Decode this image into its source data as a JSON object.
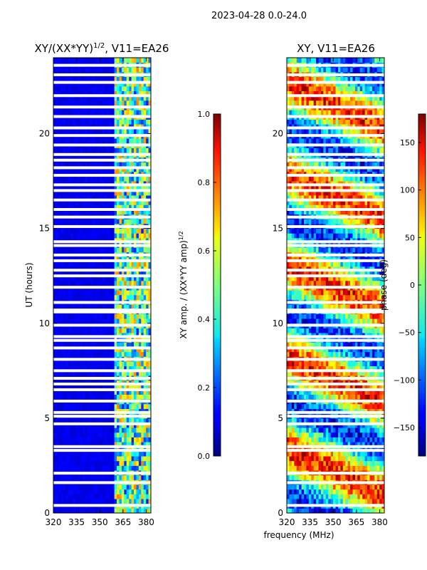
{
  "figure": {
    "suptitle": "2023-04-28 0.0-24.0",
    "xlabel": "frequency (MHz)"
  },
  "chart_data": [
    {
      "type": "heatmap",
      "title_main": "XY/(XX*YY)",
      "title_sup": "1/2",
      "title_rest": ", V11=EA26",
      "xlabel": "frequency (MHz)",
      "ylabel": "UT (hours)",
      "xlim": [
        320,
        383
      ],
      "ylim": [
        0,
        24
      ],
      "x_ticks": [
        320,
        335,
        350,
        365,
        380
      ],
      "y_ticks": [
        0,
        5,
        10,
        15,
        20
      ],
      "colormap": "jet",
      "colorbar": {
        "label_main": "XY amp. / (XX*YY amp)",
        "label_sup": "1/2",
        "range": [
          0.0,
          1.0
        ],
        "ticks": [
          "0.0",
          "0.2",
          "0.4",
          "0.6",
          "0.8",
          "1.0"
        ]
      },
      "band_edge_mhz": 360,
      "below_band_value": 0.08,
      "in_band_value_range": [
        0.15,
        0.75
      ],
      "flagged_ut_hours": [
        0.4,
        1.6,
        2.1,
        3.3,
        3.5,
        4.7,
        5.1,
        5.3,
        5.9,
        6.5,
        6.8,
        7.1,
        7.5,
        8.1,
        8.7,
        9.1,
        9.3,
        9.9,
        10.6,
        10.7,
        11.1,
        11.9,
        12.5,
        12.8,
        13.3,
        13.6,
        14.1,
        14.3,
        15.1,
        15.6,
        16.0,
        16.5,
        17.0,
        17.3,
        17.8,
        18.2,
        18.6,
        18.9,
        19.4,
        19.9,
        20.3,
        20.9,
        21.4,
        22.0,
        22.7,
        23.1,
        23.6
      ]
    },
    {
      "type": "heatmap",
      "title": "XY, V11=EA26",
      "xlabel": "frequency (MHz)",
      "ylabel": "",
      "xlim": [
        320,
        383
      ],
      "ylim": [
        0,
        24
      ],
      "x_ticks": [
        320,
        335,
        350,
        365,
        380
      ],
      "y_ticks": [
        0,
        5,
        10,
        15,
        20
      ],
      "colormap": "jet",
      "colorbar": {
        "label": "phase (deg)",
        "range": [
          -180,
          180
        ],
        "ticks": [
          "−150",
          "−100",
          "−50",
          "0",
          "50",
          "100",
          "150"
        ],
        "tick_values": [
          -150,
          -100,
          -50,
          0,
          50,
          100,
          150
        ]
      },
      "value_range_deg": [
        -180,
        180
      ],
      "flagged_ut_hours": [
        0.4,
        1.6,
        2.1,
        3.3,
        3.5,
        4.7,
        5.1,
        5.3,
        5.9,
        6.5,
        6.8,
        7.1,
        7.5,
        8.1,
        8.7,
        9.1,
        9.3,
        9.9,
        10.6,
        10.7,
        11.1,
        11.9,
        12.5,
        12.8,
        13.3,
        13.6,
        14.1,
        14.3,
        15.1,
        15.6,
        16.0,
        16.5,
        17.0,
        17.3,
        17.8,
        18.2,
        18.6,
        18.9,
        19.4,
        19.9,
        20.3,
        20.9,
        21.4,
        22.0,
        22.7,
        23.1,
        23.6
      ]
    }
  ]
}
